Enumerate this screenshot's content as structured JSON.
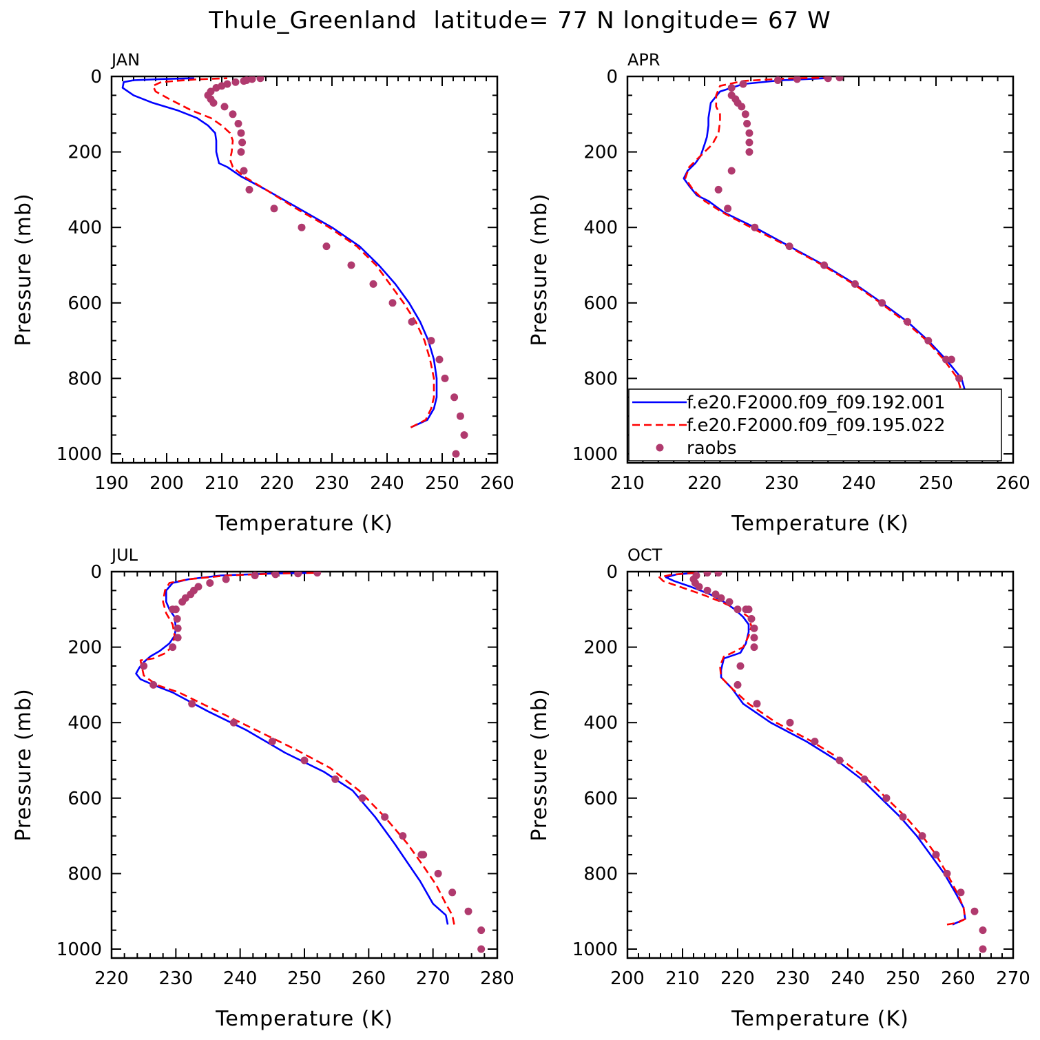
{
  "figure": {
    "title": "Thule_Greenland  latitude= 77 N longitude= 67 W",
    "ylabel": "Pressure (mb)",
    "xlabel": "Temperature (K)"
  },
  "legend": {
    "placement": "lower-left of APR panel",
    "entries": [
      {
        "label": "f.e20.F2000.f09_f09.192.001",
        "color": "#0000ff",
        "style": "solid"
      },
      {
        "label": "f.e20.F2000.f09_f09.195.022",
        "color": "#ff0000",
        "style": "dashed"
      },
      {
        "label": "raobs",
        "color": "#b03a6e",
        "style": "dots"
      }
    ]
  },
  "chart_data": [
    {
      "type": "line",
      "panel": "JAN",
      "xlabel": "Temperature (K)",
      "ylabel": "Pressure (mb)",
      "xlim": [
        190,
        260
      ],
      "ylim": [
        1000,
        0
      ],
      "xticks": [
        190,
        200,
        210,
        220,
        230,
        240,
        250,
        260
      ],
      "yticks": [
        0,
        200,
        400,
        600,
        800,
        1000
      ],
      "series": [
        {
          "name": "f.e20.F2000.f09_f09.192.001",
          "color": "#0000ff",
          "style": "solid",
          "x": [
            244.3,
            247.3,
            248.5,
            249.0,
            249.0,
            248.5,
            247.5,
            246.0,
            244.0,
            241.5,
            238.5,
            235.0,
            230.0,
            224.0,
            218.0,
            213.5,
            211.0,
            209.5,
            209.0,
            209.0,
            208.8,
            207.5,
            205.5,
            202.0,
            197.5,
            194.0,
            192.0,
            192.2,
            194.0,
            199.0,
            205.0
          ],
          "y": [
            930,
            910,
            880,
            850,
            800,
            750,
            700,
            650,
            600,
            550,
            500,
            450,
            400,
            350,
            300,
            265,
            240,
            230,
            200,
            170,
            150,
            130,
            110,
            90,
            70,
            50,
            30,
            15,
            10,
            7,
            5
          ]
        },
        {
          "name": "f.e20.F2000.f09_f09.195.022",
          "color": "#ff0000",
          "style": "dashed",
          "x": [
            244.3,
            247.0,
            248.0,
            248.5,
            248.5,
            247.8,
            246.8,
            245.2,
            243.0,
            240.5,
            238.0,
            234.5,
            229.5,
            223.5,
            218.0,
            214.0,
            212.0,
            211.5,
            211.8,
            212.0,
            211.5,
            210.0,
            208.0,
            204.5,
            200.5,
            198.0,
            197.5,
            199.0,
            205.0,
            211.0
          ],
          "y": [
            930,
            910,
            880,
            850,
            800,
            750,
            700,
            650,
            600,
            550,
            500,
            450,
            400,
            350,
            300,
            265,
            240,
            220,
            200,
            170,
            150,
            130,
            110,
            90,
            60,
            40,
            25,
            15,
            8,
            5
          ]
        },
        {
          "name": "raobs",
          "color": "#b03a6e",
          "style": "dots",
          "x": [
            252.5,
            254.0,
            253.3,
            252.2,
            250.5,
            249.5,
            248.0,
            244.5,
            241.0,
            237.5,
            233.5,
            229.0,
            224.5,
            219.5,
            215.0,
            214.0,
            213.5,
            213.7,
            213.5,
            213.0,
            212.0,
            210.5,
            208.5,
            208.0,
            207.5,
            208.0,
            209.0,
            210.0,
            211.0,
            212.5,
            214.5,
            217.0,
            215.5,
            214.0
          ],
          "y": [
            1000,
            950,
            900,
            850,
            800,
            750,
            700,
            650,
            600,
            550,
            500,
            450,
            400,
            350,
            300,
            250,
            200,
            175,
            150,
            125,
            100,
            80,
            70,
            60,
            50,
            40,
            30,
            25,
            20,
            15,
            10,
            5,
            7,
            12
          ]
        }
      ]
    },
    {
      "type": "line",
      "panel": "APR",
      "xlabel": "Temperature (K)",
      "ylabel": "Pressure (mb)",
      "xlim": [
        210,
        260
      ],
      "ylim": [
        1000,
        0
      ],
      "xticks": [
        210,
        220,
        230,
        240,
        250,
        260
      ],
      "yticks": [
        0,
        200,
        400,
        600,
        800,
        1000
      ],
      "series": [
        {
          "name": "f.e20.F2000.f09_f09.192.001",
          "color": "#0000ff",
          "style": "solid",
          "x": [
            252.3,
            254.3,
            254.5,
            254.0,
            253.3,
            251.3,
            249.0,
            246.3,
            243.0,
            239.5,
            235.5,
            231.0,
            226.5,
            222.5,
            220.5,
            219.0,
            218.0,
            217.3,
            217.8,
            218.8,
            219.5,
            220.0,
            220.3,
            220.5,
            220.5,
            220.8,
            222.0,
            225.0,
            230.0,
            235.5
          ],
          "y": [
            930,
            910,
            880,
            850,
            800,
            750,
            700,
            650,
            600,
            550,
            500,
            450,
            400,
            360,
            330,
            315,
            290,
            270,
            250,
            230,
            210,
            180,
            160,
            130,
            110,
            70,
            40,
            20,
            10,
            5
          ]
        },
        {
          "name": "f.e20.F2000.f09_f09.195.022",
          "color": "#ff0000",
          "style": "dashed",
          "x": [
            252.3,
            253.8,
            254.0,
            253.5,
            252.8,
            251.0,
            248.8,
            246.0,
            242.8,
            239.3,
            235.3,
            230.8,
            226.0,
            222.3,
            220.0,
            218.5,
            217.5,
            218.0,
            219.5,
            221.0,
            221.8,
            222.0,
            222.0,
            221.5,
            221.5,
            222.0,
            225.0,
            230.0,
            236.0
          ],
          "y": [
            930,
            910,
            880,
            850,
            800,
            750,
            700,
            650,
            600,
            550,
            500,
            450,
            400,
            360,
            330,
            300,
            270,
            240,
            210,
            180,
            150,
            120,
            100,
            80,
            50,
            25,
            12,
            6,
            3
          ]
        },
        {
          "name": "raobs",
          "color": "#b03a6e",
          "style": "dots",
          "x": [
            257.2,
            257.2,
            255.8,
            254.0,
            253.0,
            252.0,
            251.3,
            249.0,
            246.3,
            243.0,
            239.5,
            235.5,
            231.0,
            226.5,
            223.0,
            221.8,
            223.5,
            225.8,
            225.8,
            225.8,
            225.5,
            225.3,
            224.8,
            224.3,
            224.0,
            223.5,
            223.5,
            225.0,
            229.5,
            232.0,
            236.0,
            237.5
          ],
          "y": [
            1000,
            950,
            900,
            850,
            800,
            750,
            750,
            700,
            650,
            600,
            550,
            500,
            450,
            400,
            350,
            300,
            250,
            200,
            175,
            150,
            125,
            100,
            80,
            70,
            60,
            50,
            30,
            20,
            10,
            7,
            5,
            3
          ]
        }
      ]
    },
    {
      "type": "line",
      "panel": "JUL",
      "xlabel": "Temperature (K)",
      "ylabel": "Pressure (mb)",
      "xlim": [
        220,
        280
      ],
      "ylim": [
        1000,
        0
      ],
      "xticks": [
        220,
        230,
        240,
        250,
        260,
        270,
        280
      ],
      "yticks": [
        0,
        200,
        400,
        600,
        800,
        1000
      ],
      "series": [
        {
          "name": "f.e20.F2000.f09_f09.192.001",
          "color": "#0000ff",
          "style": "solid",
          "x": [
            272.3,
            272.0,
            270.0,
            268.0,
            266.0,
            264.0,
            261.0,
            257.5,
            253.0,
            247.0,
            241.0,
            235.0,
            229.5,
            226.5,
            224.5,
            223.8,
            224.3,
            225.0,
            226.0,
            227.5,
            229.0,
            229.8,
            230.0,
            229.8,
            229.0,
            228.5,
            228.5,
            229.5,
            232.0,
            237.0,
            245.0,
            252.0
          ],
          "y": [
            935,
            910,
            880,
            820,
            770,
            720,
            650,
            580,
            530,
            480,
            420,
            370,
            320,
            300,
            285,
            270,
            255,
            240,
            225,
            210,
            190,
            170,
            150,
            120,
            100,
            80,
            50,
            30,
            20,
            10,
            5,
            3
          ]
        },
        {
          "name": "f.e20.F2000.f09_f09.195.022",
          "color": "#ff0000",
          "style": "dashed",
          "x": [
            273.3,
            273.0,
            272.0,
            270.5,
            268.5,
            266.0,
            262.5,
            258.5,
            254.0,
            248.5,
            242.5,
            236.5,
            230.5,
            227.0,
            225.0,
            224.5,
            226.5,
            228.5,
            229.5,
            229.8,
            229.5,
            228.5,
            228.0,
            228.3,
            229.0,
            232.0,
            238.0,
            246.0,
            252.0
          ],
          "y": [
            935,
            910,
            880,
            830,
            780,
            720,
            650,
            580,
            520,
            470,
            420,
            370,
            320,
            300,
            275,
            235,
            230,
            215,
            195,
            170,
            140,
            110,
            80,
            50,
            30,
            20,
            10,
            5,
            3
          ]
        },
        {
          "name": "raobs",
          "color": "#b03a6e",
          "style": "dots",
          "x": [
            277.5,
            277.5,
            275.5,
            273.0,
            270.8,
            268.5,
            268.2,
            265.3,
            262.5,
            259.0,
            254.8,
            250.0,
            245.0,
            239.0,
            232.5,
            226.5,
            225.0,
            229.5,
            230.3,
            230.3,
            230.2,
            230.0,
            229.5,
            231.0,
            231.5,
            232.3,
            232.8,
            233.5,
            235.3,
            237.8,
            242.3,
            245.5,
            249.0,
            252.0
          ],
          "y": [
            1000,
            950,
            900,
            850,
            800,
            750,
            750,
            700,
            650,
            600,
            550,
            500,
            450,
            400,
            350,
            300,
            250,
            200,
            175,
            150,
            125,
            100,
            100,
            80,
            70,
            60,
            50,
            40,
            30,
            20,
            10,
            7,
            5,
            3
          ]
        }
      ]
    },
    {
      "type": "line",
      "panel": "OCT",
      "xlabel": "Temperature (K)",
      "ylabel": "Pressure (mb)",
      "xlim": [
        200,
        270
      ],
      "ylim": [
        1000,
        0
      ],
      "xticks": [
        200,
        210,
        220,
        230,
        240,
        250,
        260,
        270
      ],
      "yticks": [
        0,
        200,
        400,
        600,
        800,
        1000
      ],
      "series": [
        {
          "name": "f.e20.F2000.f09_f09.192.001",
          "color": "#0000ff",
          "style": "solid",
          "x": [
            259.0,
            261.3,
            261.0,
            259.5,
            257.5,
            255.0,
            252.5,
            249.5,
            246.0,
            242.5,
            238.0,
            232.5,
            226.0,
            221.0,
            219.0,
            217.0,
            217.0,
            217.5,
            218.5,
            220.5,
            221.5,
            222.0,
            222.0,
            221.0,
            219.5,
            217.5,
            215.0,
            211.5,
            208.5,
            207.0,
            209.0,
            213.0
          ],
          "y": [
            935,
            920,
            890,
            850,
            800,
            750,
            700,
            650,
            600,
            550,
            500,
            450,
            400,
            350,
            310,
            280,
            260,
            230,
            225,
            215,
            190,
            160,
            140,
            120,
            100,
            80,
            60,
            40,
            25,
            15,
            7,
            3
          ]
        },
        {
          "name": "f.e20.F2000.f09_f09.195.022",
          "color": "#ff0000",
          "style": "dashed",
          "x": [
            258.0,
            260.0,
            261.3,
            261.0,
            259.8,
            258.0,
            256.0,
            253.5,
            250.5,
            247.0,
            243.5,
            239.0,
            233.5,
            227.0,
            222.0,
            219.0,
            217.0,
            216.8,
            217.5,
            219.0,
            221.0,
            222.0,
            222.5,
            222.0,
            220.0,
            217.0,
            213.5,
            209.5,
            206.5,
            205.8,
            208.0,
            212.5
          ],
          "y": [
            935,
            930,
            920,
            890,
            850,
            800,
            750,
            700,
            650,
            600,
            550,
            500,
            450,
            400,
            350,
            310,
            280,
            250,
            225,
            215,
            200,
            170,
            145,
            120,
            100,
            80,
            60,
            40,
            25,
            15,
            8,
            3
          ]
        },
        {
          "name": "raobs",
          "color": "#b03a6e",
          "style": "dots",
          "x": [
            264.5,
            264.5,
            263.0,
            260.5,
            258.0,
            256.0,
            253.5,
            250.0,
            247.0,
            243.0,
            238.5,
            234.0,
            229.5,
            223.5,
            220.0,
            220.5,
            223.0,
            223.0,
            223.0,
            222.5,
            222.0,
            221.5,
            220.0,
            218.5,
            217.0,
            216.0,
            214.5,
            213.0,
            212.3,
            212.0,
            212.5,
            214.5,
            216.5
          ],
          "y": [
            1000,
            950,
            900,
            850,
            800,
            750,
            700,
            650,
            600,
            550,
            500,
            450,
            400,
            350,
            300,
            250,
            200,
            175,
            150,
            125,
            100,
            100,
            100,
            80,
            70,
            60,
            50,
            40,
            30,
            20,
            10,
            3,
            3
          ]
        }
      ]
    }
  ]
}
